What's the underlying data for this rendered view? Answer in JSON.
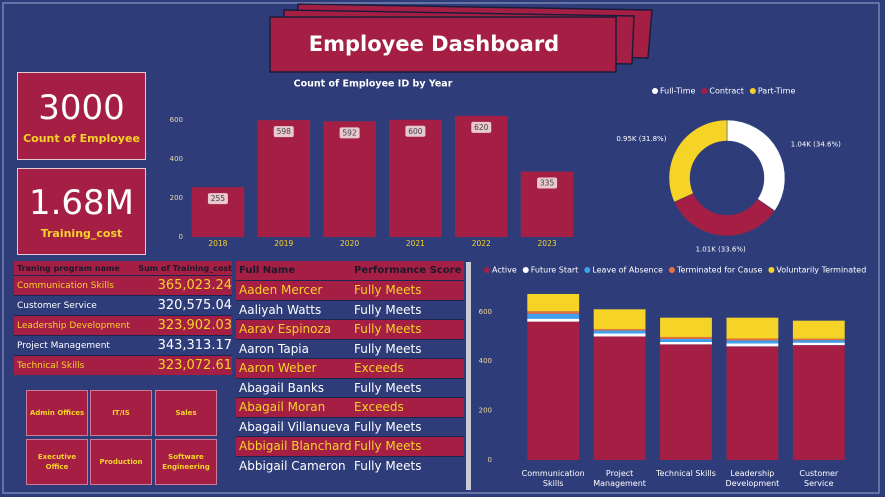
{
  "header": {
    "title": "Employee Dashboard"
  },
  "kpis": [
    {
      "value": "3000",
      "label": "Count of Employee"
    },
    {
      "value": "1.68M",
      "label": "Training_cost"
    }
  ],
  "training_table": {
    "columns": [
      "Traning program name",
      "Sum of Training_cost"
    ],
    "rows": [
      [
        "Communication Skills",
        "365,023.24"
      ],
      [
        "Customer Service",
        "320,575.04"
      ],
      [
        "Leadership Development",
        "323,902.03"
      ],
      [
        "Project Management",
        "343,313.17"
      ],
      [
        "Technical Skills",
        "323,072.61"
      ]
    ]
  },
  "employee_table": {
    "columns": [
      "Full Name",
      "Performance Score"
    ],
    "rows": [
      [
        "Aaden Mercer",
        "Fully Meets"
      ],
      [
        "Aaliyah Watts",
        "Fully Meets"
      ],
      [
        "Aarav Espinoza",
        "Fully Meets"
      ],
      [
        "Aaron Tapia",
        "Fully Meets"
      ],
      [
        "Aaron Weber",
        "Exceeds"
      ],
      [
        "Abagail Banks",
        "Fully Meets"
      ],
      [
        "Abagail Moran",
        "Exceeds"
      ],
      [
        "Abagail Villanueva",
        "Fully Meets"
      ],
      [
        "Abbigail Blanchard",
        "Fully Meets"
      ],
      [
        "Abbigail Cameron",
        "Fully Meets"
      ]
    ]
  },
  "buttons": [
    "Admin Offices",
    "IT/IS",
    "Sales",
    "Executive Office",
    "Production",
    "Software Engineering"
  ],
  "chart_data": [
    {
      "type": "bar",
      "title": "Count of Employee ID by Year",
      "categories": [
        "2018",
        "2019",
        "2020",
        "2021",
        "2022",
        "2023"
      ],
      "values": [
        255,
        598,
        592,
        600,
        620,
        335
      ],
      "color": "#a51f45",
      "ylim": [
        0,
        650
      ],
      "yticks": [
        0,
        200,
        400,
        600
      ]
    },
    {
      "type": "donut",
      "categories": [
        "Full-Time",
        "Contract",
        "Part-Time"
      ],
      "values": [
        34.6,
        33.6,
        31.8
      ],
      "value_labels": [
        "1.04K (34.6%)",
        "1.01K (33.6%)",
        "0.95K (31.8%)"
      ],
      "colors": [
        "#ffffff",
        "#a51f45",
        "#f5d327"
      ],
      "legend": "top"
    },
    {
      "type": "stacked_bar",
      "categories": [
        "Communication Skills",
        "Project Management",
        "Technical Skills",
        "Leadership Development",
        "Customer Service"
      ],
      "series": [
        {
          "name": "Active",
          "color": "#a51f45",
          "values": [
            560,
            500,
            468,
            460,
            465
          ]
        },
        {
          "name": "Future Start",
          "color": "#ffffff",
          "values": [
            12,
            12,
            10,
            12,
            10
          ]
        },
        {
          "name": "Leave of Absence",
          "color": "#3fa0f0",
          "values": [
            20,
            12,
            12,
            12,
            10
          ]
        },
        {
          "name": "Terminated for Cause",
          "color": "#e8703a",
          "values": [
            10,
            6,
            8,
            8,
            6
          ]
        },
        {
          "name": "Voluntarily Terminated",
          "color": "#f5d327",
          "values": [
            70,
            80,
            78,
            84,
            73
          ]
        }
      ],
      "ylim": [
        0,
        680
      ],
      "yticks": [
        0,
        200,
        400,
        600
      ],
      "legend": "top"
    }
  ]
}
